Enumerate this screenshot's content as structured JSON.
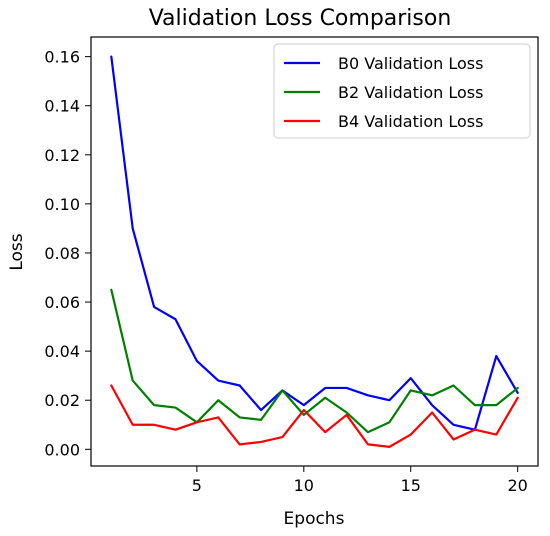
{
  "chart_data": {
    "type": "line",
    "title": "Validation Loss Comparison",
    "xlabel": "Epochs",
    "ylabel": "Loss",
    "xlim": [
      0.05,
      20.95
    ],
    "ylim": [
      -0.0068,
      0.168
    ],
    "xticks": [
      5,
      10,
      15,
      20
    ],
    "xtick_labels": [
      "5",
      "10",
      "15",
      "20"
    ],
    "yticks": [
      0.0,
      0.02,
      0.04,
      0.06,
      0.08,
      0.1,
      0.12,
      0.14,
      0.16
    ],
    "ytick_labels": [
      "0.00",
      "0.02",
      "0.04",
      "0.06",
      "0.08",
      "0.10",
      "0.12",
      "0.14",
      "0.16"
    ],
    "grid": false,
    "legend_position": "top-right",
    "x": [
      1,
      2,
      3,
      4,
      5,
      6,
      7,
      8,
      9,
      10,
      11,
      12,
      13,
      14,
      15,
      16,
      17,
      18,
      19,
      20
    ],
    "series": [
      {
        "name": "B0 Validation Loss",
        "color": "#0000ff",
        "values": [
          0.16,
          0.09,
          0.058,
          0.053,
          0.036,
          0.028,
          0.026,
          0.016,
          0.024,
          0.018,
          0.025,
          0.025,
          0.022,
          0.02,
          0.029,
          0.018,
          0.01,
          0.008,
          0.038,
          0.023
        ]
      },
      {
        "name": "B2 Validation Loss",
        "color": "#008000",
        "values": [
          0.065,
          0.028,
          0.018,
          0.017,
          0.011,
          0.02,
          0.013,
          0.012,
          0.024,
          0.014,
          0.021,
          0.015,
          0.007,
          0.011,
          0.024,
          0.022,
          0.026,
          0.018,
          0.018,
          0.025
        ]
      },
      {
        "name": "B4 Validation Loss",
        "color": "#ff0000",
        "values": [
          0.026,
          0.01,
          0.01,
          0.008,
          0.011,
          0.013,
          0.002,
          0.003,
          0.005,
          0.016,
          0.007,
          0.014,
          0.002,
          0.001,
          0.006,
          0.015,
          0.004,
          0.008,
          0.006,
          0.021
        ]
      }
    ]
  }
}
